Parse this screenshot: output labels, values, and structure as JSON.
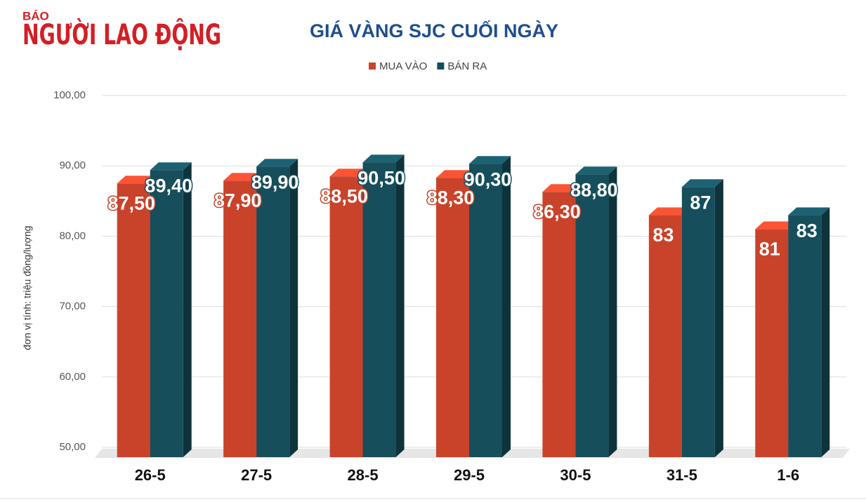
{
  "logo": {
    "small": "BÁO",
    "main": "NGƯỜI LAO ĐỘNG"
  },
  "chart_data": {
    "type": "bar3d",
    "title": "GIÁ VÀNG SJC CUỐI NGÀY",
    "y_axis_label": "đơn vị tính: triệu đồng/lượng",
    "categories": [
      "26-5",
      "27-5",
      "28-5",
      "29-5",
      "30-5",
      "31-5",
      "1-6"
    ],
    "series": [
      {
        "name": "MUA VÀO",
        "color": "#c9432a",
        "values": [
          87.5,
          87.9,
          88.5,
          88.3,
          86.3,
          83,
          81
        ],
        "value_labels": [
          "87,50",
          "87,90",
          "88,50",
          "88,30",
          "86,30",
          "83",
          "81"
        ]
      },
      {
        "name": "BÁN RA",
        "color": "#164e5b",
        "values": [
          89.4,
          89.9,
          90.5,
          90.3,
          88.8,
          87,
          83
        ],
        "value_labels": [
          "89,40",
          "89,90",
          "90,50",
          "90,30",
          "88,80",
          "87",
          "83"
        ]
      }
    ],
    "ylim": [
      50,
      100
    ],
    "yticks": [
      {
        "value": 50,
        "label": "50,00"
      },
      {
        "value": 60,
        "label": "60,00"
      },
      {
        "value": 70,
        "label": "70,00"
      },
      {
        "value": 80,
        "label": "80,00"
      },
      {
        "value": 90,
        "label": "90,00"
      },
      {
        "value": 100,
        "label": "100,00"
      }
    ],
    "grid": true
  }
}
